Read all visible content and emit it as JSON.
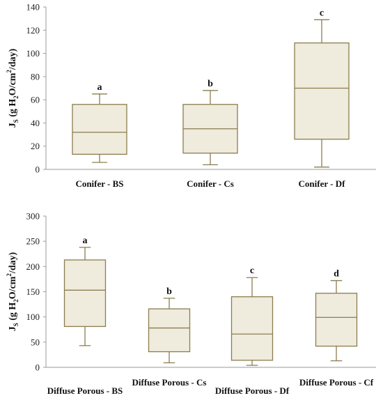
{
  "colors": {
    "box_fill": "#EFEBDD",
    "box_stroke": "#8B7D4E",
    "axis": "#9A9A9A"
  },
  "chart_data": [
    {
      "type": "box",
      "ylabel": {
        "main": "J",
        "sub": "S",
        "paren_open": " (g H",
        "sub2": "2",
        "mid": "O/cm",
        "sup": "2",
        "end": "/day)"
      },
      "ylim": [
        0,
        140
      ],
      "yticks": [
        0,
        20,
        40,
        60,
        80,
        100,
        120,
        140
      ],
      "grid": false,
      "categories": [
        "Conifer - BS",
        "Conifer - Cs",
        "Conifer - Df"
      ],
      "boxes": [
        {
          "min": 6,
          "q1": 13,
          "median": 32,
          "q3": 56,
          "max": 65,
          "label": "a"
        },
        {
          "min": 4,
          "q1": 14,
          "median": 35,
          "q3": 56,
          "max": 68,
          "label": "b"
        },
        {
          "min": 2,
          "q1": 26,
          "median": 70,
          "q3": 109,
          "max": 129,
          "label": "c"
        }
      ]
    },
    {
      "type": "box",
      "ylabel": {
        "main": "J",
        "sub": "S",
        "paren_open": " (g H",
        "sub2": "2",
        "mid": "O/cm",
        "sup": "2",
        "end": "/day)"
      },
      "ylim": [
        0,
        300
      ],
      "yticks": [
        0,
        50,
        100,
        150,
        200,
        250,
        300
      ],
      "grid": false,
      "categories": [
        "Diffuse Porous - BS",
        "Diffuse Porous - Cs",
        "Diffuse Porous - Df",
        "Diffuse Porous - Cf"
      ],
      "boxes": [
        {
          "min": 43,
          "q1": 81,
          "median": 153,
          "q3": 213,
          "max": 238,
          "label": "a"
        },
        {
          "min": 9,
          "q1": 31,
          "median": 78,
          "q3": 116,
          "max": 137,
          "label": "b"
        },
        {
          "min": 4,
          "q1": 14,
          "median": 66,
          "q3": 140,
          "max": 178,
          "label": "c"
        },
        {
          "min": 13,
          "q1": 42,
          "median": 99,
          "q3": 147,
          "max": 172,
          "label": "d"
        }
      ]
    }
  ]
}
